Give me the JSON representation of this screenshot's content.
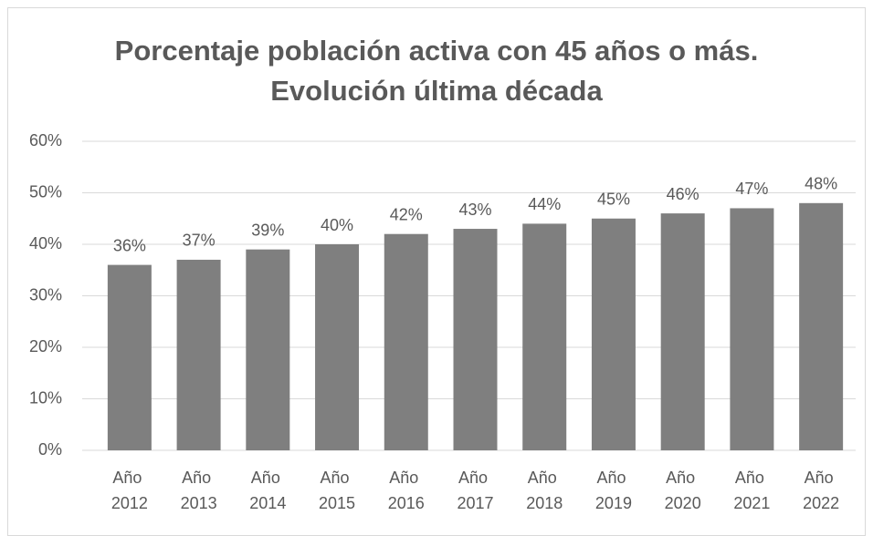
{
  "chart_data": {
    "type": "bar",
    "title": "Porcentaje población activa con 45 años o más. Evolución última década",
    "categories": [
      "Año 2012",
      "Año 2013",
      "Año 2014",
      "Año 2015",
      "Año 2016",
      "Año 2017",
      "Año 2018",
      "Año 2019",
      "Año 2020",
      "Año 2021",
      "Año 2022"
    ],
    "values": [
      36,
      37,
      39,
      40,
      42,
      43,
      44,
      45,
      46,
      47,
      48
    ],
    "value_labels": [
      "36%",
      "37%",
      "39%",
      "40%",
      "42%",
      "43%",
      "44%",
      "45%",
      "46%",
      "47%",
      "48%"
    ],
    "color": "#7f7f7f",
    "ylim": [
      0,
      60
    ],
    "yticks": [
      {
        "value": 0,
        "label": "0%"
      },
      {
        "value": 10,
        "label": "10%"
      },
      {
        "value": 20,
        "label": "20%"
      },
      {
        "value": 30,
        "label": "30%"
      },
      {
        "value": 40,
        "label": "40%"
      },
      {
        "value": 50,
        "label": "50%"
      },
      {
        "value": 60,
        "label": "60%"
      }
    ],
    "grid": true
  }
}
